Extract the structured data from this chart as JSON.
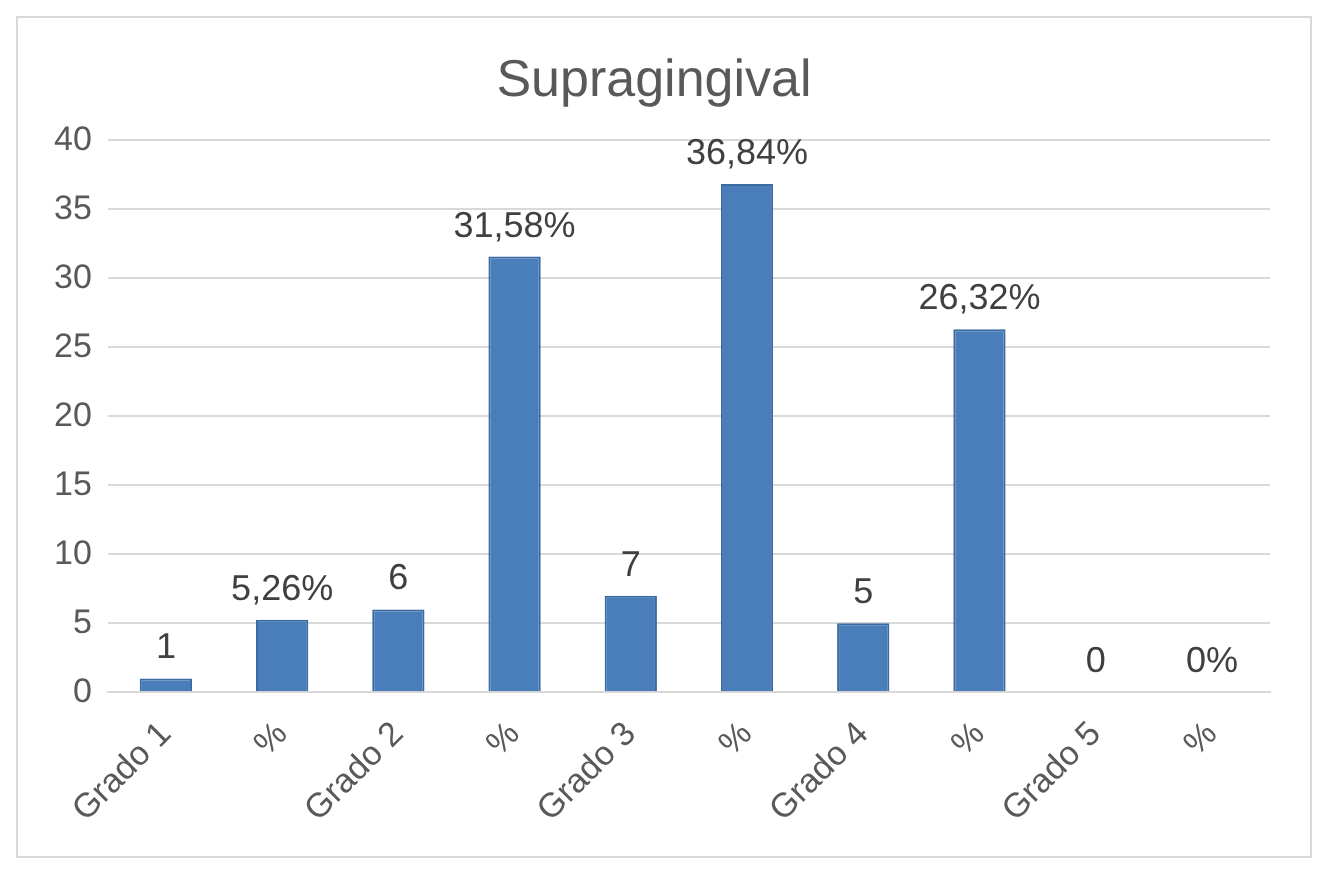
{
  "chart_data": {
    "type": "bar",
    "title": "Supragingival",
    "categories": [
      "Grado 1",
      "%",
      "Grado 2",
      "%",
      "Grado 3",
      "%",
      "Grado 4",
      "%",
      "Grado 5",
      "%"
    ],
    "values": [
      1,
      5.26,
      6,
      31.58,
      7,
      36.84,
      5,
      26.32,
      0,
      0
    ],
    "value_labels": [
      "1",
      "5,26%",
      "6",
      "31,58%",
      "7",
      "36,84%",
      "5",
      "26,32%",
      "0",
      "0%"
    ],
    "color": "#4a7ebb",
    "ylim": [
      0,
      40
    ],
    "yticks": [
      0,
      5,
      10,
      15,
      20,
      25,
      30,
      35,
      40
    ],
    "grid": "y"
  }
}
